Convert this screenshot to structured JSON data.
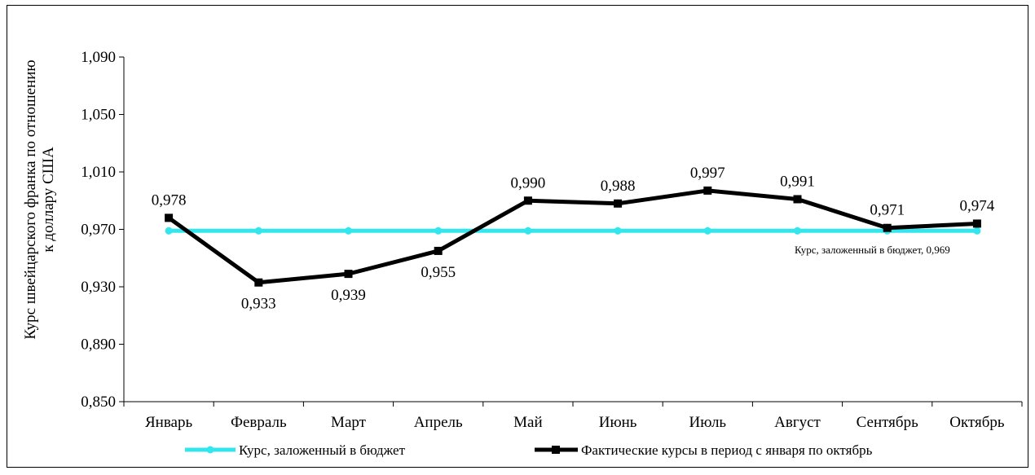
{
  "chart_data": {
    "type": "line",
    "title": "",
    "ylabel_lines": [
      "Курс швейцарского франка по отношению",
      "к доллару США"
    ],
    "xlabel": "",
    "categories": [
      "Январь",
      "Февраль",
      "Март",
      "Апрель",
      "Май",
      "Июнь",
      "Июль",
      "Август",
      "Сентябрь",
      "Октябрь"
    ],
    "ylim": [
      0.85,
      1.09
    ],
    "yticks": [
      0.85,
      0.89,
      0.93,
      0.97,
      1.01,
      1.05,
      1.09
    ],
    "ytick_labels": [
      "0,850",
      "0,890",
      "0,930",
      "0,970",
      "1,010",
      "1,050",
      "1,090"
    ],
    "grid": false,
    "legend_position": "bottom",
    "series": [
      {
        "name": "Курс, заложенный в бюджет",
        "color": "#33e6ee",
        "marker": "circle",
        "values": [
          0.969,
          0.969,
          0.969,
          0.969,
          0.969,
          0.969,
          0.969,
          0.969,
          0.969,
          0.969
        ],
        "end_label": "Курс, заложенный в бюджет, 0,969"
      },
      {
        "name": "Фактические курсы в период с января по октябрь",
        "color": "#000000",
        "marker": "square",
        "values": [
          0.978,
          0.933,
          0.939,
          0.955,
          0.99,
          0.988,
          0.997,
          0.991,
          0.971,
          0.974
        ],
        "data_labels": [
          "0,978",
          "0,933",
          "0,939",
          "0,955",
          "0,990",
          "0,988",
          "0,997",
          "0,991",
          "0,971",
          "0,974"
        ]
      }
    ]
  }
}
